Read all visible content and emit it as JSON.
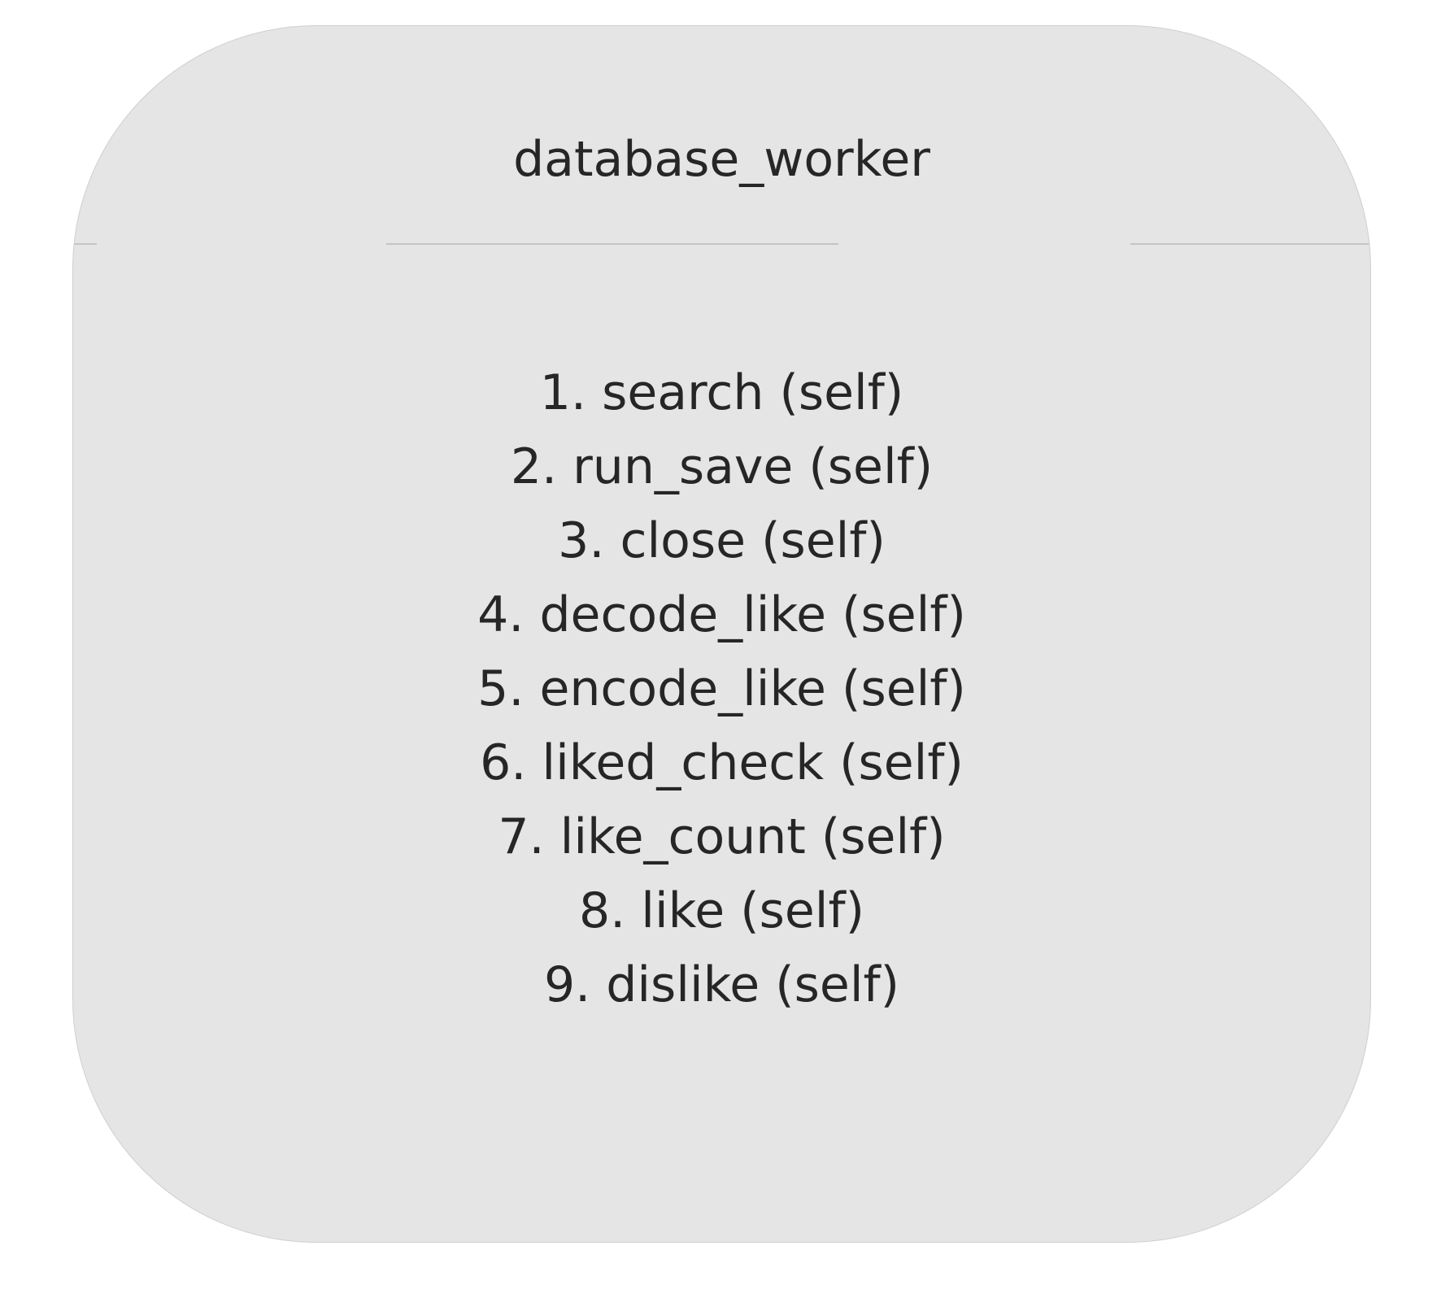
{
  "node": {
    "title": "database_worker",
    "methods": [
      "1. search (self)",
      "2. run_save (self)",
      "3. close (self)",
      "4. decode_like (self)",
      "5. encode_like (self)",
      "6. liked_check (self)",
      "7. like_count (self)",
      "8. like (self)",
      "9. dislike (self)"
    ]
  },
  "colors": {
    "node_fill": "#e5e5e5",
    "node_border": "#cfcfcf",
    "divider": "#c4c4c4",
    "text": "#262626",
    "background": "#ffffff"
  }
}
